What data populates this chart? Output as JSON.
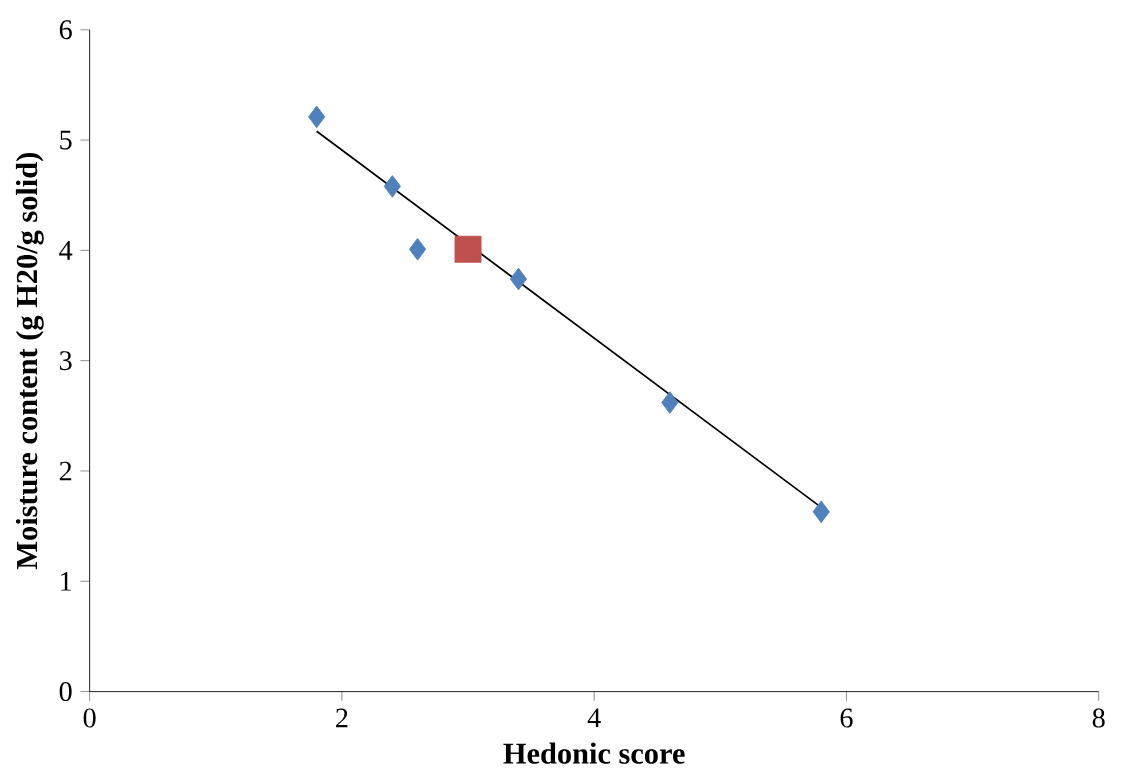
{
  "chart_data": {
    "type": "scatter",
    "xlabel": "Hedonic score",
    "ylabel": "Moisture content (g H20/g solid)",
    "xlim": [
      0,
      8
    ],
    "ylim": [
      0,
      6
    ],
    "xticks": [
      0,
      2,
      4,
      6,
      8
    ],
    "yticks": [
      0,
      1,
      2,
      3,
      4,
      5,
      6
    ],
    "grid": false,
    "series": [
      {
        "marker": "diamond",
        "color": "#4f81bd",
        "x": [
          1.8,
          2.4,
          2.6,
          3.4,
          4.6,
          5.8
        ],
        "values": [
          5.21,
          4.58,
          4.01,
          3.74,
          2.62,
          1.63
        ]
      },
      {
        "marker": "square",
        "color": "#c0504d",
        "x": [
          3.0
        ],
        "values": [
          4.01
        ]
      },
      {
        "type": "line",
        "marker": "none",
        "color": "#000000",
        "x": [
          1.8,
          5.8
        ],
        "values": [
          5.08,
          1.67
        ]
      }
    ]
  }
}
